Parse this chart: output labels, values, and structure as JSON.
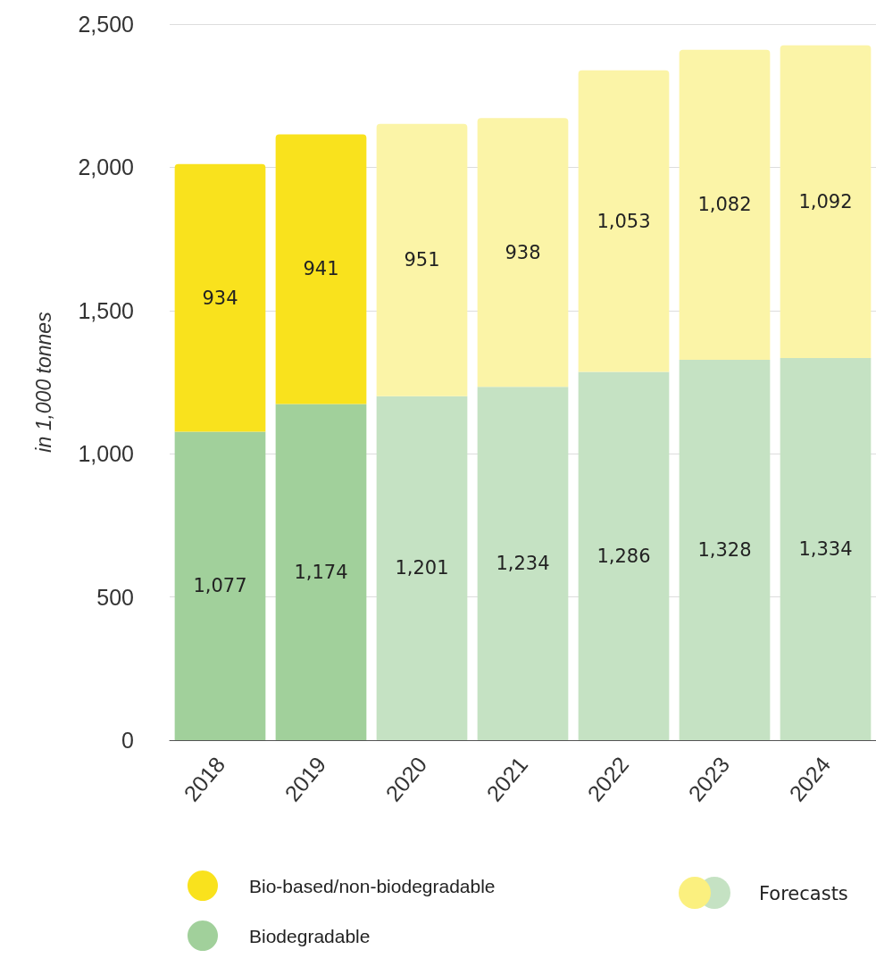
{
  "chart_data": {
    "type": "bar",
    "ylabel": "in 1,000 tonnes",
    "categories": [
      "2018",
      "2019",
      "2020",
      "2021",
      "2022",
      "2023",
      "2024"
    ],
    "series": [
      {
        "name": "Biodegradable",
        "color": "#a1d09b",
        "colors": [
          "#a1d09b",
          "#a1d09b",
          "#c5e2c3",
          "#c5e2c3",
          "#c5e2c3",
          "#c5e2c3",
          "#c5e2c3"
        ],
        "values": [
          1077,
          1174,
          1201,
          1234,
          1286,
          1328,
          1334
        ],
        "value_labels": [
          "1,077",
          "1,174",
          "1,201",
          "1,234",
          "1,286",
          "1,328",
          "1,334"
        ]
      },
      {
        "name": "Bio-based/non-biodegradable",
        "color": "#f9e21d",
        "colors": [
          "#f9e21d",
          "#f9e21d",
          "#fbf4a7",
          "#fbf4a7",
          "#fbf4a7",
          "#fbf4a7",
          "#fbf4a7"
        ],
        "values": [
          934,
          941,
          951,
          938,
          1053,
          1082,
          1092
        ],
        "value_labels": [
          "934",
          "941",
          "951",
          "938",
          "1,053",
          "1,082",
          "1,092"
        ]
      }
    ],
    "stacked": true,
    "ylim": [
      0,
      2500
    ],
    "yticks": [
      0,
      500,
      {
        "value": 1000,
        "label": "1,000"
      },
      {
        "value": 1500,
        "label": "1,500"
      },
      {
        "value": 2000,
        "label": "2,000"
      },
      {
        "value": 2500,
        "label": "2,500"
      }
    ],
    "grid": "y",
    "legend": "bottom",
    "annotations": [
      "Forecasts"
    ]
  }
}
